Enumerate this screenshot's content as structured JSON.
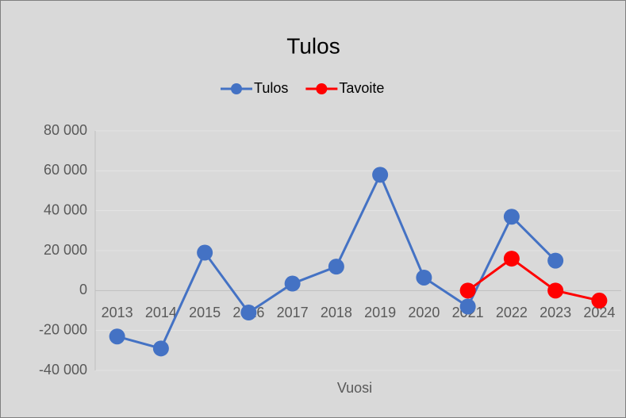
{
  "chart_data": {
    "type": "line",
    "title": "Tulos",
    "x_label": "Vuosi",
    "categories": [
      "2013",
      "2014",
      "2015",
      "2016",
      "2017",
      "2018",
      "2019",
      "2020",
      "2021",
      "2022",
      "2023",
      "2024"
    ],
    "series": [
      {
        "name": "Tulos",
        "color": "#4472c4",
        "values": [
          -23000,
          -29000,
          19000,
          -11000,
          3500,
          12000,
          58000,
          6500,
          -8000,
          37000,
          15000,
          null
        ]
      },
      {
        "name": "Tavoite",
        "color": "#ff0000",
        "values": [
          null,
          null,
          null,
          null,
          null,
          null,
          null,
          null,
          0,
          16000,
          0,
          -5000
        ]
      }
    ],
    "ylim": [
      -40000,
      80000
    ],
    "yticks": [
      {
        "value": -40000,
        "label": "-40 000"
      },
      {
        "value": -20000,
        "label": "-20 000"
      },
      0,
      {
        "value": 20000,
        "label": "20 000"
      },
      {
        "value": 40000,
        "label": "40 000"
      },
      {
        "value": 60000,
        "label": "60 000"
      },
      {
        "value": 80000,
        "label": "80 000"
      }
    ],
    "grid": true,
    "legend": "top"
  }
}
